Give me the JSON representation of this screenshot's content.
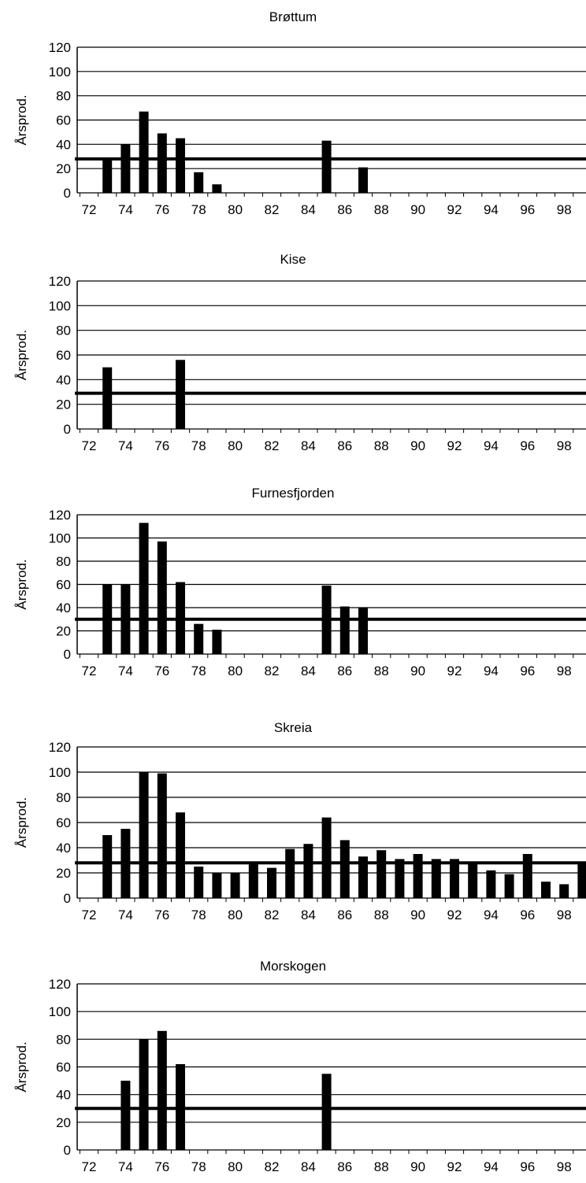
{
  "chart_data": [
    {
      "type": "bar",
      "title": "Brøttum",
      "ylabel": "Årsprod.",
      "xlabel": "",
      "ylim": [
        0,
        120
      ],
      "y_ticks": [
        0,
        20,
        40,
        60,
        80,
        100,
        120
      ],
      "x_range": [
        72,
        99
      ],
      "x_ticks": [
        "72",
        "74",
        "76",
        "78",
        "80",
        "82",
        "84",
        "86",
        "88",
        "90",
        "92",
        "94",
        "96",
        "98"
      ],
      "grid": true,
      "reference_line": 28,
      "bars": [
        {
          "x": 73,
          "value": 28
        },
        {
          "x": 74,
          "value": 40
        },
        {
          "x": 75,
          "value": 67
        },
        {
          "x": 76,
          "value": 49
        },
        {
          "x": 77,
          "value": 45
        },
        {
          "x": 78,
          "value": 17
        },
        {
          "x": 79,
          "value": 7
        },
        {
          "x": 85,
          "value": 43
        },
        {
          "x": 87,
          "value": 21
        }
      ]
    },
    {
      "type": "bar",
      "title": "Kise",
      "ylabel": "Årsprod.",
      "xlabel": "",
      "ylim": [
        0,
        120
      ],
      "y_ticks": [
        0,
        20,
        40,
        60,
        80,
        100,
        120
      ],
      "x_range": [
        72,
        99
      ],
      "x_ticks": [
        "72",
        "74",
        "76",
        "78",
        "80",
        "82",
        "84",
        "86",
        "88",
        "90",
        "92",
        "94",
        "96",
        "98"
      ],
      "grid": true,
      "reference_line": 29,
      "bars": [
        {
          "x": 73,
          "value": 50
        },
        {
          "x": 77,
          "value": 56
        }
      ]
    },
    {
      "type": "bar",
      "title": "Furnesfjorden",
      "ylabel": "Årsprod.",
      "xlabel": "",
      "ylim": [
        0,
        120
      ],
      "y_ticks": [
        0,
        20,
        40,
        60,
        80,
        100,
        120
      ],
      "x_range": [
        72,
        99
      ],
      "x_ticks": [
        "72",
        "74",
        "76",
        "78",
        "80",
        "82",
        "84",
        "86",
        "88",
        "90",
        "92",
        "94",
        "96",
        "98"
      ],
      "grid": true,
      "reference_line": 30,
      "bars": [
        {
          "x": 73,
          "value": 60
        },
        {
          "x": 74,
          "value": 60
        },
        {
          "x": 75,
          "value": 113
        },
        {
          "x": 76,
          "value": 97
        },
        {
          "x": 77,
          "value": 62
        },
        {
          "x": 78,
          "value": 26
        },
        {
          "x": 79,
          "value": 21
        },
        {
          "x": 85,
          "value": 59
        },
        {
          "x": 86,
          "value": 41
        },
        {
          "x": 87,
          "value": 40
        }
      ]
    },
    {
      "type": "bar",
      "title": "Skreia",
      "ylabel": "Årsprod.",
      "xlabel": "",
      "ylim": [
        0,
        120
      ],
      "y_ticks": [
        0,
        20,
        40,
        60,
        80,
        100,
        120
      ],
      "x_range": [
        72,
        99
      ],
      "x_ticks": [
        "72",
        "74",
        "76",
        "78",
        "80",
        "82",
        "84",
        "86",
        "88",
        "90",
        "92",
        "94",
        "96",
        "98"
      ],
      "grid": true,
      "reference_line": 28,
      "bars": [
        {
          "x": 73,
          "value": 50
        },
        {
          "x": 74,
          "value": 55
        },
        {
          "x": 75,
          "value": 100
        },
        {
          "x": 76,
          "value": 99
        },
        {
          "x": 77,
          "value": 68
        },
        {
          "x": 78,
          "value": 25
        },
        {
          "x": 79,
          "value": 20
        },
        {
          "x": 80,
          "value": 20
        },
        {
          "x": 81,
          "value": 27
        },
        {
          "x": 82,
          "value": 24
        },
        {
          "x": 83,
          "value": 39
        },
        {
          "x": 84,
          "value": 43
        },
        {
          "x": 85,
          "value": 64
        },
        {
          "x": 86,
          "value": 46
        },
        {
          "x": 87,
          "value": 33
        },
        {
          "x": 88,
          "value": 38
        },
        {
          "x": 89,
          "value": 31
        },
        {
          "x": 90,
          "value": 35
        },
        {
          "x": 91,
          "value": 31
        },
        {
          "x": 92,
          "value": 31
        },
        {
          "x": 93,
          "value": 27
        },
        {
          "x": 94,
          "value": 22
        },
        {
          "x": 95,
          "value": 19
        },
        {
          "x": 96,
          "value": 35
        },
        {
          "x": 97,
          "value": 13
        },
        {
          "x": 98,
          "value": 11
        },
        {
          "x": 99,
          "value": 27
        }
      ]
    },
    {
      "type": "bar",
      "title": "Morskogen",
      "ylabel": "Årsprod.",
      "xlabel": "",
      "ylim": [
        0,
        120
      ],
      "y_ticks": [
        0,
        20,
        40,
        60,
        80,
        100,
        120
      ],
      "x_range": [
        72,
        99
      ],
      "x_ticks": [
        "72",
        "74",
        "76",
        "78",
        "80",
        "82",
        "84",
        "86",
        "88",
        "90",
        "92",
        "94",
        "96",
        "98"
      ],
      "grid": true,
      "reference_line": 30,
      "bars": [
        {
          "x": 74,
          "value": 50
        },
        {
          "x": 75,
          "value": 80
        },
        {
          "x": 76,
          "value": 86
        },
        {
          "x": 77,
          "value": 62
        },
        {
          "x": 85,
          "value": 55
        }
      ]
    }
  ]
}
